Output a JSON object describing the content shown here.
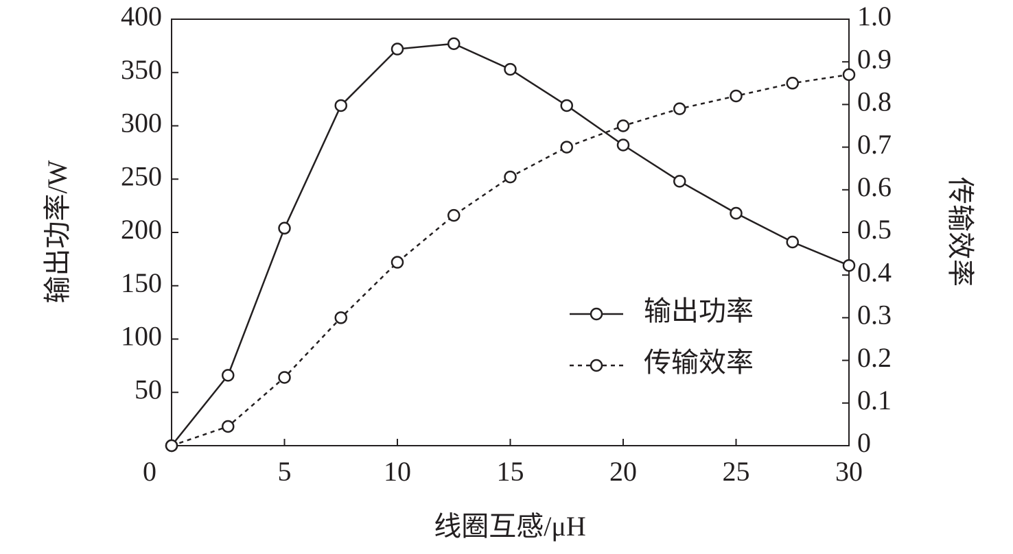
{
  "chart_data": {
    "type": "line",
    "x_label": "线圈互感/μH",
    "y_label": "输出功率/W",
    "y2_label": "传输效率",
    "x": [
      0,
      2.5,
      5,
      7.5,
      10,
      12.5,
      15,
      17.5,
      20,
      22.5,
      25,
      27.5,
      30
    ],
    "xlim": [
      0,
      30
    ],
    "xticks": [
      0,
      5,
      10,
      15,
      20,
      25,
      30
    ],
    "ylim": [
      0,
      400
    ],
    "yticks": [
      50,
      100,
      150,
      200,
      250,
      300,
      350,
      400
    ],
    "y2lim": [
      0,
      1
    ],
    "y2ticks": [
      0,
      0.1,
      0.2,
      0.3,
      0.4,
      0.5,
      0.6,
      0.7,
      0.8,
      0.9,
      {
        "value": 1,
        "label": "1.0"
      }
    ],
    "legend": "center-right",
    "series": [
      {
        "name": "输出功率",
        "color": "#231f20",
        "dash": "solid",
        "values": [
          0,
          66,
          204,
          319,
          372,
          377,
          353,
          319,
          282,
          248,
          218,
          191,
          169
        ]
      },
      {
        "name": "传输效率",
        "color": "#231f20",
        "dash": "dashed",
        "axis": "y2",
        "values": [
          0,
          0.045,
          0.16,
          0.3,
          0.43,
          0.54,
          0.63,
          0.7,
          0.75,
          0.79,
          0.82,
          0.85,
          0.87
        ]
      }
    ]
  }
}
